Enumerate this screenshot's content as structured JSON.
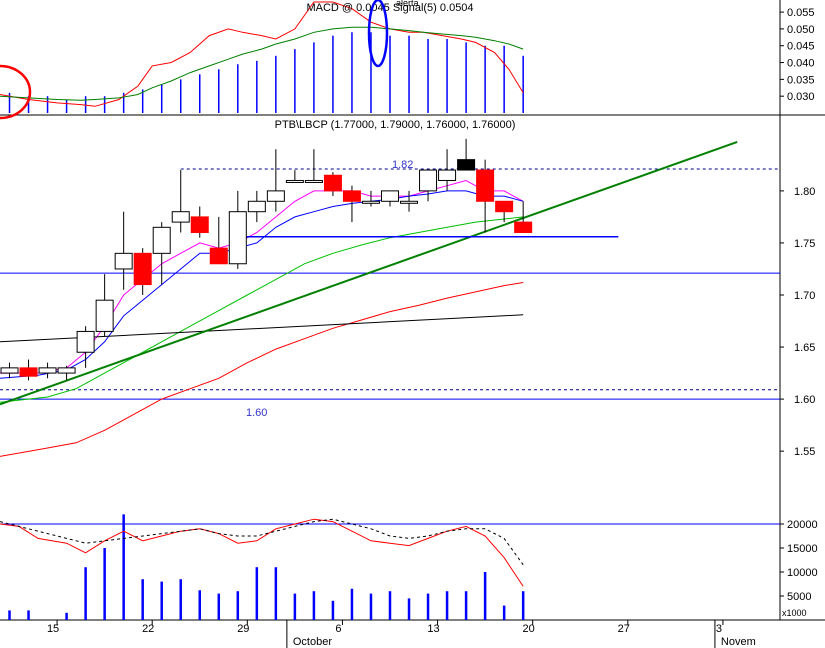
{
  "chart_data": [
    {
      "panel": "macd",
      "type": "line",
      "title": "MACD @ 0.0045 Signal(5) 0.0504",
      "y_ticks": [
        0.055,
        0.05,
        0.045,
        0.04,
        0.035,
        0.03
      ],
      "ylim": [
        0.025,
        0.058
      ],
      "extra_label": "alerta",
      "series": [
        {
          "color": "#ff0000",
          "x": [
            0,
            6,
            12,
            17,
            20,
            25,
            29,
            32,
            36,
            40,
            44,
            48,
            51,
            55,
            58,
            62,
            66,
            70,
            74,
            78,
            82,
            86,
            89,
            93,
            97,
            100,
            104,
            107,
            110
          ],
          "values": [
            0.0305,
            0.029,
            0.028,
            0.0275,
            0.027,
            0.029,
            0.033,
            0.039,
            0.04,
            0.043,
            0.048,
            0.05,
            0.049,
            0.048,
            0.047,
            0.05,
            0.058,
            0.058,
            0.056,
            0.052,
            0.05,
            0.049,
            0.049,
            0.048,
            0.047,
            0.046,
            0.043,
            0.038,
            0.031
          ]
        },
        {
          "color": "#008000",
          "x": [
            0,
            6,
            12,
            17,
            20,
            25,
            29,
            32,
            36,
            40,
            44,
            48,
            51,
            55,
            58,
            62,
            66,
            70,
            74,
            78,
            82,
            86,
            89,
            93,
            97,
            100,
            104,
            107,
            110
          ],
          "values": [
            0.03,
            0.0295,
            0.029,
            0.0288,
            0.029,
            0.0295,
            0.0305,
            0.0325,
            0.0345,
            0.037,
            0.039,
            0.041,
            0.0425,
            0.044,
            0.0455,
            0.047,
            0.049,
            0.05,
            0.0505,
            0.0505,
            0.05,
            0.0495,
            0.049,
            0.0485,
            0.048,
            0.0475,
            0.0465,
            0.0455,
            0.044
          ]
        }
      ],
      "histogram": {
        "color": "#0000ff",
        "x": [
          2,
          6,
          10,
          14,
          18,
          22,
          26,
          30,
          34,
          38,
          42,
          46,
          50,
          54,
          58,
          62,
          66,
          70,
          74,
          78,
          82,
          86,
          90,
          94,
          98,
          102,
          106,
          110
        ],
        "values": [
          0.031,
          0.03,
          0.03,
          0.029,
          0.03,
          0.03,
          0.031,
          0.032,
          0.0335,
          0.035,
          0.0365,
          0.038,
          0.0395,
          0.0405,
          0.042,
          0.044,
          0.046,
          0.048,
          0.049,
          0.049,
          0.048,
          0.048,
          0.047,
          0.047,
          0.046,
          0.045,
          0.045,
          0.042
        ]
      }
    },
    {
      "panel": "price",
      "type": "candlestick",
      "title": "PTB\\LBCP (1.77000, 1.79000, 1.76000, 1.76000)",
      "y_ticks": [
        1.8,
        1.75,
        1.7,
        1.65,
        1.6,
        1.55
      ],
      "ylim": [
        1.505,
        1.87
      ],
      "annotations": [
        "1.82",
        "1.60"
      ],
      "candles": [
        {
          "x": 2,
          "o": 1.63,
          "h": 1.635,
          "l": 1.62,
          "c": 1.625
        },
        {
          "x": 6,
          "o": 1.63,
          "h": 1.638,
          "l": 1.618,
          "c": 1.622
        },
        {
          "x": 10,
          "o": 1.625,
          "h": 1.635,
          "l": 1.62,
          "c": 1.63
        },
        {
          "x": 14,
          "o": 1.625,
          "h": 1.632,
          "l": 1.618,
          "c": 1.63
        },
        {
          "x": 18,
          "o": 1.645,
          "h": 1.67,
          "l": 1.63,
          "c": 1.665
        },
        {
          "x": 22,
          "o": 1.665,
          "h": 1.72,
          "l": 1.66,
          "c": 1.695
        },
        {
          "x": 26,
          "o": 1.725,
          "h": 1.78,
          "l": 1.705,
          "c": 1.74
        },
        {
          "x": 30,
          "o": 1.74,
          "h": 1.745,
          "l": 1.7,
          "c": 1.71
        },
        {
          "x": 34,
          "o": 1.74,
          "h": 1.77,
          "l": 1.71,
          "c": 1.765
        },
        {
          "x": 38,
          "o": 1.77,
          "h": 1.82,
          "l": 1.76,
          "c": 1.78
        },
        {
          "x": 42,
          "o": 1.775,
          "h": 1.785,
          "l": 1.755,
          "c": 1.76
        },
        {
          "x": 46,
          "o": 1.745,
          "h": 1.775,
          "l": 1.73,
          "c": 1.73
        },
        {
          "x": 50,
          "o": 1.73,
          "h": 1.8,
          "l": 1.725,
          "c": 1.78
        },
        {
          "x": 54,
          "o": 1.78,
          "h": 1.8,
          "l": 1.77,
          "c": 1.79
        },
        {
          "x": 58,
          "o": 1.79,
          "h": 1.84,
          "l": 1.78,
          "c": 1.8
        },
        {
          "x": 62,
          "o": 1.81,
          "h": 1.82,
          "l": 1.81,
          "c": 1.81
        },
        {
          "x": 66,
          "o": 1.81,
          "h": 1.84,
          "l": 1.81,
          "c": 1.81
        },
        {
          "x": 70,
          "o": 1.815,
          "h": 1.818,
          "l": 1.795,
          "c": 1.8
        },
        {
          "x": 74,
          "o": 1.8,
          "h": 1.805,
          "l": 1.77,
          "c": 1.79
        },
        {
          "x": 78,
          "o": 1.79,
          "h": 1.8,
          "l": 1.785,
          "c": 1.79
        },
        {
          "x": 82,
          "o": 1.79,
          "h": 1.8,
          "l": 1.785,
          "c": 1.8
        },
        {
          "x": 86,
          "o": 1.79,
          "h": 1.8,
          "l": 1.78,
          "c": 1.79
        },
        {
          "x": 90,
          "o": 1.8,
          "h": 1.82,
          "l": 1.79,
          "c": 1.82
        },
        {
          "x": 94,
          "o": 1.81,
          "h": 1.84,
          "l": 1.8,
          "c": 1.82
        },
        {
          "x": 98,
          "o": 1.82,
          "h": 1.85,
          "l": 1.82,
          "c": 1.83
        },
        {
          "x": 102,
          "o": 1.82,
          "h": 1.83,
          "l": 1.76,
          "c": 1.79
        },
        {
          "x": 106,
          "o": 1.79,
          "h": 1.79,
          "l": 1.77,
          "c": 1.78
        },
        {
          "x": 110,
          "o": 1.77,
          "h": 1.79,
          "l": 1.76,
          "c": 1.76
        }
      ],
      "filled_candles": [
        1,
        7,
        10,
        11,
        17,
        18,
        25,
        26,
        27
      ],
      "black_candles": [
        24
      ],
      "lines": [
        {
          "color": "#ff00ff",
          "x": [
            0,
            8,
            14,
            18,
            22,
            26,
            30,
            34,
            38,
            42,
            46,
            50,
            54,
            58,
            62,
            66,
            70,
            74,
            78,
            82,
            86,
            90,
            94,
            98,
            102,
            106,
            110
          ],
          "values": [
            1.625,
            1.625,
            1.63,
            1.645,
            1.67,
            1.7,
            1.715,
            1.73,
            1.74,
            1.75,
            1.745,
            1.75,
            1.76,
            1.775,
            1.79,
            1.8,
            1.8,
            1.8,
            1.795,
            1.795,
            1.795,
            1.8,
            1.805,
            1.81,
            1.8,
            1.8,
            1.79
          ]
        },
        {
          "color": "#0000ff",
          "x": [
            0,
            8,
            14,
            18,
            22,
            26,
            30,
            34,
            38,
            42,
            46,
            50,
            54,
            58,
            62,
            66,
            70,
            74,
            78,
            82,
            86,
            90,
            94,
            98,
            102,
            106,
            110
          ],
          "values": [
            1.62,
            1.623,
            1.628,
            1.638,
            1.655,
            1.68,
            1.695,
            1.71,
            1.725,
            1.74,
            1.74,
            1.745,
            1.75,
            1.765,
            1.775,
            1.78,
            1.785,
            1.788,
            1.79,
            1.792,
            1.795,
            1.797,
            1.8,
            1.8,
            1.795,
            1.795,
            1.79
          ]
        },
        {
          "color": "#00c000",
          "x": [
            0,
            10,
            16,
            22,
            28,
            34,
            40,
            46,
            52,
            58,
            64,
            70,
            76,
            82,
            88,
            94,
            100,
            106,
            110
          ],
          "values": [
            1.597,
            1.602,
            1.61,
            1.625,
            1.64,
            1.655,
            1.67,
            1.685,
            1.7,
            1.715,
            1.73,
            1.74,
            1.748,
            1.755,
            1.76,
            1.765,
            1.77,
            1.773,
            1.775
          ]
        },
        {
          "color": "#ff0000",
          "x": [
            0,
            10,
            16,
            22,
            28,
            34,
            40,
            46,
            52,
            58,
            64,
            70,
            76,
            82,
            88,
            94,
            100,
            106,
            110
          ],
          "values": [
            1.545,
            1.553,
            1.558,
            1.57,
            1.585,
            1.6,
            1.61,
            1.62,
            1.635,
            1.648,
            1.658,
            1.668,
            1.676,
            1.684,
            1.69,
            1.697,
            1.703,
            1.709,
            1.712
          ]
        },
        {
          "color": "#000000",
          "x": [
            0,
            110
          ],
          "values": [
            1.655,
            1.681
          ]
        },
        {
          "color": "#008000",
          "x": [
            0,
            155
          ],
          "values": [
            1.595,
            1.847
          ]
        },
        {
          "color": "#0000ff",
          "x": [
            50,
            130
          ],
          "values": [
            1.756,
            1.756
          ]
        }
      ],
      "hlines": [
        {
          "color": "#0000ff",
          "y": 1.721,
          "style": "solid"
        },
        {
          "color": "#0000ff",
          "y": 1.6,
          "style": "solid"
        },
        {
          "color": "#00008b",
          "y": 1.609,
          "style": "dashed"
        },
        {
          "color": "#00008b",
          "y": 1.821,
          "style": "dashed",
          "from_x": 38
        }
      ]
    },
    {
      "panel": "volume",
      "type": "bar",
      "y_ticks": [
        20000,
        15000,
        10000,
        5000
      ],
      "ylim": [
        0,
        25000
      ],
      "axis_note": "x1000",
      "bars": {
        "color": "#0000ff",
        "x": [
          2,
          6,
          10,
          14,
          18,
          22,
          26,
          30,
          34,
          38,
          42,
          46,
          50,
          54,
          58,
          62,
          66,
          70,
          74,
          78,
          82,
          86,
          90,
          94,
          98,
          102,
          106,
          110
        ],
        "values": [
          2000,
          2000,
          0,
          1500,
          11000,
          15000,
          22000,
          8500,
          8000,
          8500,
          6200,
          5500,
          6000,
          11000,
          11000,
          5500,
          6000,
          4000,
          6500,
          5500,
          6000,
          4500,
          5500,
          6000,
          6000,
          10000,
          3000,
          6000
        ]
      },
      "series": [
        {
          "style": "solid",
          "color": "#ff0000",
          "x": [
            0,
            4,
            8,
            14,
            18,
            22,
            26,
            30,
            34,
            38,
            42,
            46,
            50,
            54,
            58,
            62,
            66,
            70,
            74,
            78,
            82,
            86,
            90,
            94,
            98,
            102,
            106,
            110
          ],
          "values": [
            20000,
            19500,
            17000,
            16000,
            14000,
            16500,
            18500,
            16500,
            17500,
            18500,
            19000,
            18000,
            16000,
            16500,
            19000,
            20000,
            21000,
            20500,
            18500,
            16500,
            16000,
            15500,
            17000,
            18500,
            19500,
            17500,
            13000,
            7000
          ]
        },
        {
          "style": "dashed",
          "color": "#000000",
          "x": [
            0,
            6,
            12,
            18,
            22,
            26,
            30,
            34,
            38,
            42,
            46,
            50,
            54,
            58,
            62,
            66,
            70,
            74,
            78,
            82,
            86,
            90,
            94,
            98,
            102,
            106,
            110
          ],
          "values": [
            20500,
            19000,
            17500,
            16000,
            16500,
            17000,
            17500,
            18000,
            18500,
            19000,
            18000,
            17500,
            17500,
            18500,
            19500,
            20500,
            21000,
            20000,
            19000,
            17500,
            17000,
            17500,
            18500,
            19000,
            19000,
            17000,
            11500
          ]
        }
      ],
      "reference_line": {
        "color": "#0000ff",
        "y": 20000
      }
    }
  ],
  "x_axis": {
    "ticks": [
      {
        "x": 12,
        "label": "15"
      },
      {
        "x": 32,
        "label": "22"
      },
      {
        "x": 52,
        "label": "29"
      },
      {
        "x": 72,
        "label": "6"
      },
      {
        "x": 92,
        "label": "13"
      },
      {
        "x": 112,
        "label": "20"
      },
      {
        "x": 132,
        "label": "27"
      },
      {
        "x": 152,
        "label": "3"
      }
    ],
    "month_labels": [
      {
        "x": 62,
        "label": "October"
      },
      {
        "x": 152,
        "label": "Novem"
      }
    ],
    "xlim": [
      0,
      164
    ]
  }
}
